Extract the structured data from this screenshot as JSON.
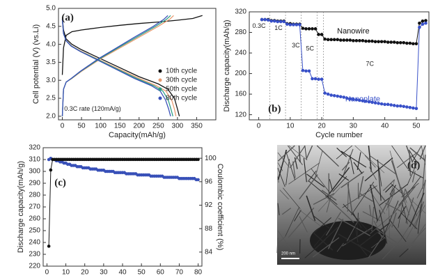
{
  "chart_data": [
    {
      "type": "line",
      "xlabel": "Capacity(mAh/g)",
      "ylabel": "Cell potential (V) (vs.Li)",
      "xlim": [
        -10,
        400
      ],
      "xticks": [
        0,
        50,
        100,
        150,
        200,
        250,
        300,
        350
      ],
      "ylim": [
        1.9,
        5.0
      ],
      "yticks": [
        {
          "value": 2,
          "label": "2.0"
        },
        2.5,
        {
          "value": 3,
          "label": "3.0"
        },
        3.5,
        {
          "value": 4,
          "label": "4.0"
        },
        4.5,
        {
          "value": 5,
          "label": "5.0"
        }
      ],
      "legend": "right",
      "annotations": [
        "(a)",
        "0.3C rate (120mA/g)"
      ],
      "series": [
        {
          "name": "10th cycle",
          "color": "#111111",
          "x": [
            0,
            3,
            10,
            25,
            50,
            100,
            150,
            200,
            250,
            275,
            292,
            300,
            305,
            null,
            0,
            3,
            10,
            25,
            50,
            100,
            150,
            200,
            250,
            300,
            340,
            365
          ],
          "values": [
            4.75,
            4.4,
            4.15,
            4.0,
            3.85,
            3.6,
            3.35,
            3.1,
            2.9,
            2.75,
            2.5,
            2.2,
            2.0,
            null,
            3.15,
            3.9,
            4.25,
            4.35,
            4.4,
            4.47,
            4.53,
            4.58,
            4.62,
            4.67,
            4.72,
            4.8
          ]
        },
        {
          "name": "30th cycle",
          "color": "#e89a70",
          "x": [
            0,
            3,
            10,
            25,
            50,
            100,
            150,
            200,
            245,
            270,
            285,
            292,
            296,
            null,
            0,
            3,
            10,
            25,
            50,
            100,
            150,
            200,
            250,
            280,
            290
          ],
          "values": [
            4.7,
            4.3,
            4.1,
            3.95,
            3.8,
            3.55,
            3.3,
            3.05,
            2.85,
            2.7,
            2.45,
            2.2,
            2.0,
            null,
            2.0,
            2.75,
            2.95,
            3.05,
            3.25,
            3.6,
            3.9,
            4.2,
            4.5,
            4.7,
            4.8
          ]
        },
        {
          "name": "50th cycle",
          "color": "#2e9e86",
          "x": [
            0,
            3,
            10,
            24,
            48,
            97,
            145,
            194,
            238,
            262,
            276,
            283,
            288,
            null,
            0,
            3,
            10,
            24,
            48,
            97,
            145,
            194,
            243,
            272,
            282
          ],
          "values": [
            4.7,
            4.3,
            4.1,
            3.95,
            3.8,
            3.55,
            3.3,
            3.05,
            2.85,
            2.7,
            2.45,
            2.2,
            2.0,
            null,
            2.0,
            2.75,
            2.95,
            3.05,
            3.25,
            3.6,
            3.9,
            4.2,
            4.5,
            4.7,
            4.8
          ]
        },
        {
          "name": "80th cycle",
          "color": "#3850b8",
          "x": [
            0,
            3,
            10,
            23,
            47,
            94,
            141,
            188,
            232,
            255,
            269,
            277,
            282,
            null,
            0,
            3,
            10,
            23,
            47,
            94,
            141,
            188,
            237,
            265,
            275
          ],
          "values": [
            4.7,
            4.3,
            4.1,
            3.95,
            3.8,
            3.55,
            3.3,
            3.05,
            2.85,
            2.7,
            2.45,
            2.2,
            2.0,
            null,
            2.0,
            2.75,
            2.95,
            3.05,
            3.25,
            3.6,
            3.9,
            4.2,
            4.5,
            4.7,
            4.8
          ]
        }
      ]
    },
    {
      "type": "line",
      "xlabel": "Cycle number",
      "ylabel": "Discharge capacity(mAh/g)",
      "xlim": [
        -3,
        54
      ],
      "xticks": [
        0,
        10,
        20,
        30,
        40,
        50
      ],
      "ylim": [
        110,
        320
      ],
      "yticks": [
        120,
        160,
        200,
        240,
        280,
        320
      ],
      "vlines": [
        3.5,
        8.5,
        13.5,
        18.5,
        20.5
      ],
      "annotations": [
        "(b)",
        "0.3C",
        "1C",
        "3C",
        "5C",
        "7C"
      ],
      "series": [
        {
          "name": "Nanowire",
          "color": "#111111",
          "markers": true,
          "x": [
            1,
            2,
            3,
            4,
            5,
            6,
            7,
            8,
            9,
            10,
            11,
            12,
            13,
            14,
            15,
            16,
            17,
            18,
            19,
            20,
            21,
            22,
            23,
            24,
            25,
            26,
            27,
            28,
            29,
            30,
            31,
            32,
            33,
            34,
            35,
            36,
            37,
            38,
            39,
            40,
            41,
            42,
            43,
            44,
            45,
            46,
            47,
            48,
            49,
            50,
            51,
            52,
            53
          ],
          "values": [
            305,
            305,
            305,
            303,
            303,
            302,
            302,
            302,
            297,
            297,
            296,
            296,
            296,
            288,
            287,
            287,
            287,
            287,
            276,
            276,
            267,
            266,
            266,
            266,
            266,
            265,
            265,
            265,
            265,
            264,
            264,
            264,
            264,
            263,
            263,
            263,
            262,
            262,
            262,
            262,
            261,
            261,
            261,
            260,
            260,
            260,
            259,
            259,
            258,
            258,
            298,
            302,
            303
          ]
        },
        {
          "name": "Nanoplate",
          "color": "#3850c8",
          "markers": true,
          "x": [
            1,
            2,
            3,
            4,
            5,
            6,
            7,
            8,
            9,
            10,
            11,
            12,
            13,
            14,
            15,
            16,
            17,
            18,
            19,
            20,
            21,
            22,
            23,
            24,
            25,
            26,
            27,
            28,
            29,
            30,
            31,
            32,
            33,
            34,
            35,
            36,
            37,
            38,
            39,
            40,
            41,
            42,
            43,
            44,
            45,
            46,
            47,
            48,
            49,
            50,
            51,
            52,
            53
          ],
          "values": [
            305,
            305,
            304,
            302,
            302,
            301,
            301,
            301,
            296,
            295,
            295,
            295,
            295,
            206,
            205,
            205,
            190,
            190,
            189,
            189,
            162,
            160,
            158,
            157,
            156,
            155,
            154,
            152,
            151,
            150,
            149,
            148,
            147,
            146,
            145,
            144,
            143,
            142,
            141,
            140,
            140,
            139,
            138,
            137,
            137,
            136,
            135,
            134,
            133,
            132,
            290,
            296,
            298
          ]
        }
      ]
    },
    {
      "type": "line",
      "xlabel": "Cycle number",
      "ylabel": "Discharge capacity(mAh/g)",
      "y2label": "Coulombic coefficient (%)",
      "xlim": [
        -2,
        82
      ],
      "xticks": [
        0,
        10,
        20,
        30,
        40,
        50,
        60,
        70,
        80
      ],
      "ylim": [
        220,
        320
      ],
      "yticks": [
        220,
        230,
        240,
        250,
        260,
        270,
        280,
        290,
        300,
        310,
        320
      ],
      "y2lim": [
        81.6,
        101.8
      ],
      "y2ticks": [
        84,
        88,
        92,
        96,
        100
      ],
      "annotations": [
        "(c)"
      ],
      "series": [
        {
          "name": "Discharge capacity",
          "color": "#3850b8",
          "markers": true,
          "x": [
            1,
            2,
            3,
            4,
            5,
            6,
            7,
            8,
            9,
            10,
            11,
            12,
            13,
            14,
            15,
            16,
            17,
            18,
            19,
            20,
            21,
            22,
            23,
            24,
            25,
            26,
            27,
            28,
            29,
            30,
            31,
            32,
            33,
            34,
            35,
            36,
            37,
            38,
            39,
            40,
            41,
            42,
            43,
            44,
            45,
            46,
            47,
            48,
            49,
            50,
            51,
            52,
            53,
            54,
            55,
            56,
            57,
            58,
            59,
            60,
            61,
            62,
            63,
            64,
            65,
            66,
            67,
            68,
            69,
            70,
            71,
            72,
            73,
            74,
            75,
            76,
            77,
            78,
            79,
            80
          ],
          "values": [
            310,
            311,
            310,
            310,
            309,
            309,
            308,
            308,
            307,
            307,
            306,
            306,
            305,
            305,
            305,
            304,
            304,
            304,
            303,
            303,
            303,
            303,
            302,
            302,
            302,
            302,
            301,
            301,
            301,
            301,
            300,
            300,
            300,
            300,
            300,
            299,
            299,
            299,
            299,
            299,
            299,
            298,
            298,
            298,
            298,
            298,
            298,
            297,
            297,
            297,
            297,
            297,
            297,
            297,
            296,
            296,
            296,
            296,
            296,
            296,
            296,
            295,
            295,
            295,
            295,
            295,
            295,
            295,
            295,
            294,
            294,
            294,
            294,
            294,
            294,
            294,
            294,
            294,
            293,
            293
          ]
        },
        {
          "name": "Coulombic coefficient",
          "color": "#111111",
          "markers": true,
          "axis": "y2",
          "x": [
            1,
            2,
            3,
            4,
            5,
            6,
            7,
            8,
            9,
            10,
            11,
            12,
            13,
            14,
            15,
            16,
            17,
            18,
            19,
            20,
            21,
            22,
            23,
            24,
            25,
            26,
            27,
            28,
            29,
            30,
            31,
            32,
            33,
            34,
            35,
            36,
            37,
            38,
            39,
            40,
            41,
            42,
            43,
            44,
            45,
            46,
            47,
            48,
            49,
            50,
            51,
            52,
            53,
            54,
            55,
            56,
            57,
            58,
            59,
            60,
            61,
            62,
            63,
            64,
            65,
            66,
            67,
            68,
            69,
            70,
            71,
            72,
            73,
            74,
            75,
            76,
            77,
            78,
            79,
            80
          ],
          "values": [
            85,
            98,
            99.8,
            99.8,
            99.8,
            99.8,
            99.8,
            99.8,
            99.8,
            99.8,
            99.8,
            99.8,
            99.8,
            99.8,
            99.8,
            99.8,
            99.8,
            99.8,
            99.8,
            99.8,
            99.8,
            99.8,
            99.8,
            99.8,
            99.8,
            99.8,
            99.8,
            99.8,
            99.8,
            99.8,
            99.8,
            99.8,
            99.8,
            99.8,
            99.8,
            99.8,
            99.8,
            99.8,
            99.8,
            99.8,
            99.8,
            99.8,
            99.8,
            99.8,
            99.8,
            99.8,
            99.8,
            99.8,
            99.8,
            99.8,
            99.8,
            99.8,
            99.8,
            99.8,
            99.8,
            99.8,
            99.8,
            99.8,
            99.8,
            99.8,
            99.8,
            99.8,
            99.8,
            99.8,
            99.8,
            99.8,
            99.8,
            99.8,
            99.8,
            99.8,
            99.8,
            99.8,
            99.8,
            99.8,
            99.8,
            99.8,
            99.8,
            99.8,
            99.8,
            99.8
          ]
        }
      ]
    }
  ],
  "image": {
    "label": "(d)",
    "scale_bar": "200 nm"
  }
}
